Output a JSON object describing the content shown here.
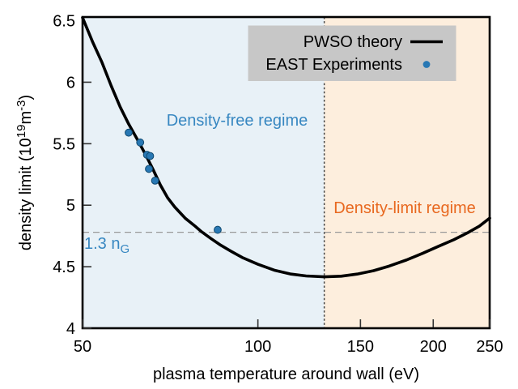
{
  "chart_data": {
    "type": "line",
    "title": "",
    "x_axis": {
      "label": "plasma temperature around wall (eV)",
      "scale": "log",
      "min": 50,
      "max": 250,
      "ticks": [
        50,
        100,
        150,
        200,
        250
      ],
      "tick_labels": [
        "50",
        "100",
        "150",
        "200",
        "250"
      ]
    },
    "y_axis": {
      "label": "density limit (10^19 m^-3)",
      "label_parts": [
        {
          "t": "density limit (10"
        },
        {
          "t": "19",
          "sup": true
        },
        {
          "t": "m"
        },
        {
          "t": "-3",
          "sup": true
        },
        {
          "t": ")"
        }
      ],
      "scale": "linear",
      "min": 4,
      "max": 6.53,
      "ticks": [
        4,
        4.5,
        5,
        5.5,
        6,
        6.5
      ],
      "tick_labels": [
        "4",
        "4.5",
        "5",
        "5.5",
        "6",
        "6.5"
      ]
    },
    "series": [
      {
        "name": "PWSO theory",
        "type": "line",
        "color": "#000000",
        "width": 3.6,
        "points": [
          [
            50,
            6.525
          ],
          [
            52,
            6.33
          ],
          [
            54,
            6.16
          ],
          [
            56,
            5.97
          ],
          [
            58,
            5.8
          ],
          [
            60,
            5.66
          ],
          [
            62,
            5.54
          ],
          [
            64,
            5.42
          ],
          [
            66,
            5.295
          ],
          [
            68,
            5.165
          ],
          [
            70,
            5.06
          ],
          [
            72,
            4.985
          ],
          [
            75,
            4.895
          ],
          [
            78,
            4.83
          ],
          [
            80,
            4.785
          ],
          [
            83,
            4.73
          ],
          [
            86,
            4.68
          ],
          [
            90,
            4.625
          ],
          [
            94,
            4.575
          ],
          [
            100,
            4.52
          ],
          [
            107,
            4.47
          ],
          [
            114,
            4.44
          ],
          [
            121,
            4.425
          ],
          [
            130,
            4.418
          ],
          [
            139,
            4.423
          ],
          [
            148,
            4.44
          ],
          [
            158,
            4.468
          ],
          [
            168,
            4.505
          ],
          [
            180,
            4.555
          ],
          [
            192,
            4.61
          ],
          [
            204,
            4.665
          ],
          [
            217,
            4.72
          ],
          [
            230,
            4.78
          ],
          [
            240,
            4.83
          ],
          [
            250,
            4.895
          ]
        ]
      },
      {
        "name": "EAST Experiments",
        "type": "scatter",
        "color": "#2878b4",
        "edge_color": "#11496f",
        "radius": 4.4,
        "points": [
          [
            60.0,
            5.59
          ],
          [
            62.8,
            5.51
          ],
          [
            64.5,
            5.41
          ],
          [
            65.3,
            5.4
          ],
          [
            65.0,
            5.295
          ],
          [
            66.6,
            5.2
          ],
          [
            85.3,
            4.8
          ]
        ]
      }
    ],
    "annotations": {
      "vline": {
        "x": 130,
        "color": "#444444"
      },
      "hline": {
        "y": 4.78,
        "color": "#999999",
        "label": "1.3 n",
        "label_sub": "G",
        "label_color": "#3787c1"
      },
      "regions": [
        {
          "from": 50,
          "to": 130,
          "color": "#e8f1f7",
          "label": "Density-free regime",
          "label_color": "#3787c1"
        },
        {
          "from": 130,
          "to": 250,
          "color": "#fdeedd",
          "label": "Density-limit regime",
          "label_color": "#e8681f"
        }
      ]
    },
    "legend": {
      "bg": "#c7c7c7",
      "entries": [
        {
          "label": "PWSO theory",
          "marker": "line"
        },
        {
          "label": "EAST Experiments",
          "marker": "dot"
        }
      ]
    }
  }
}
